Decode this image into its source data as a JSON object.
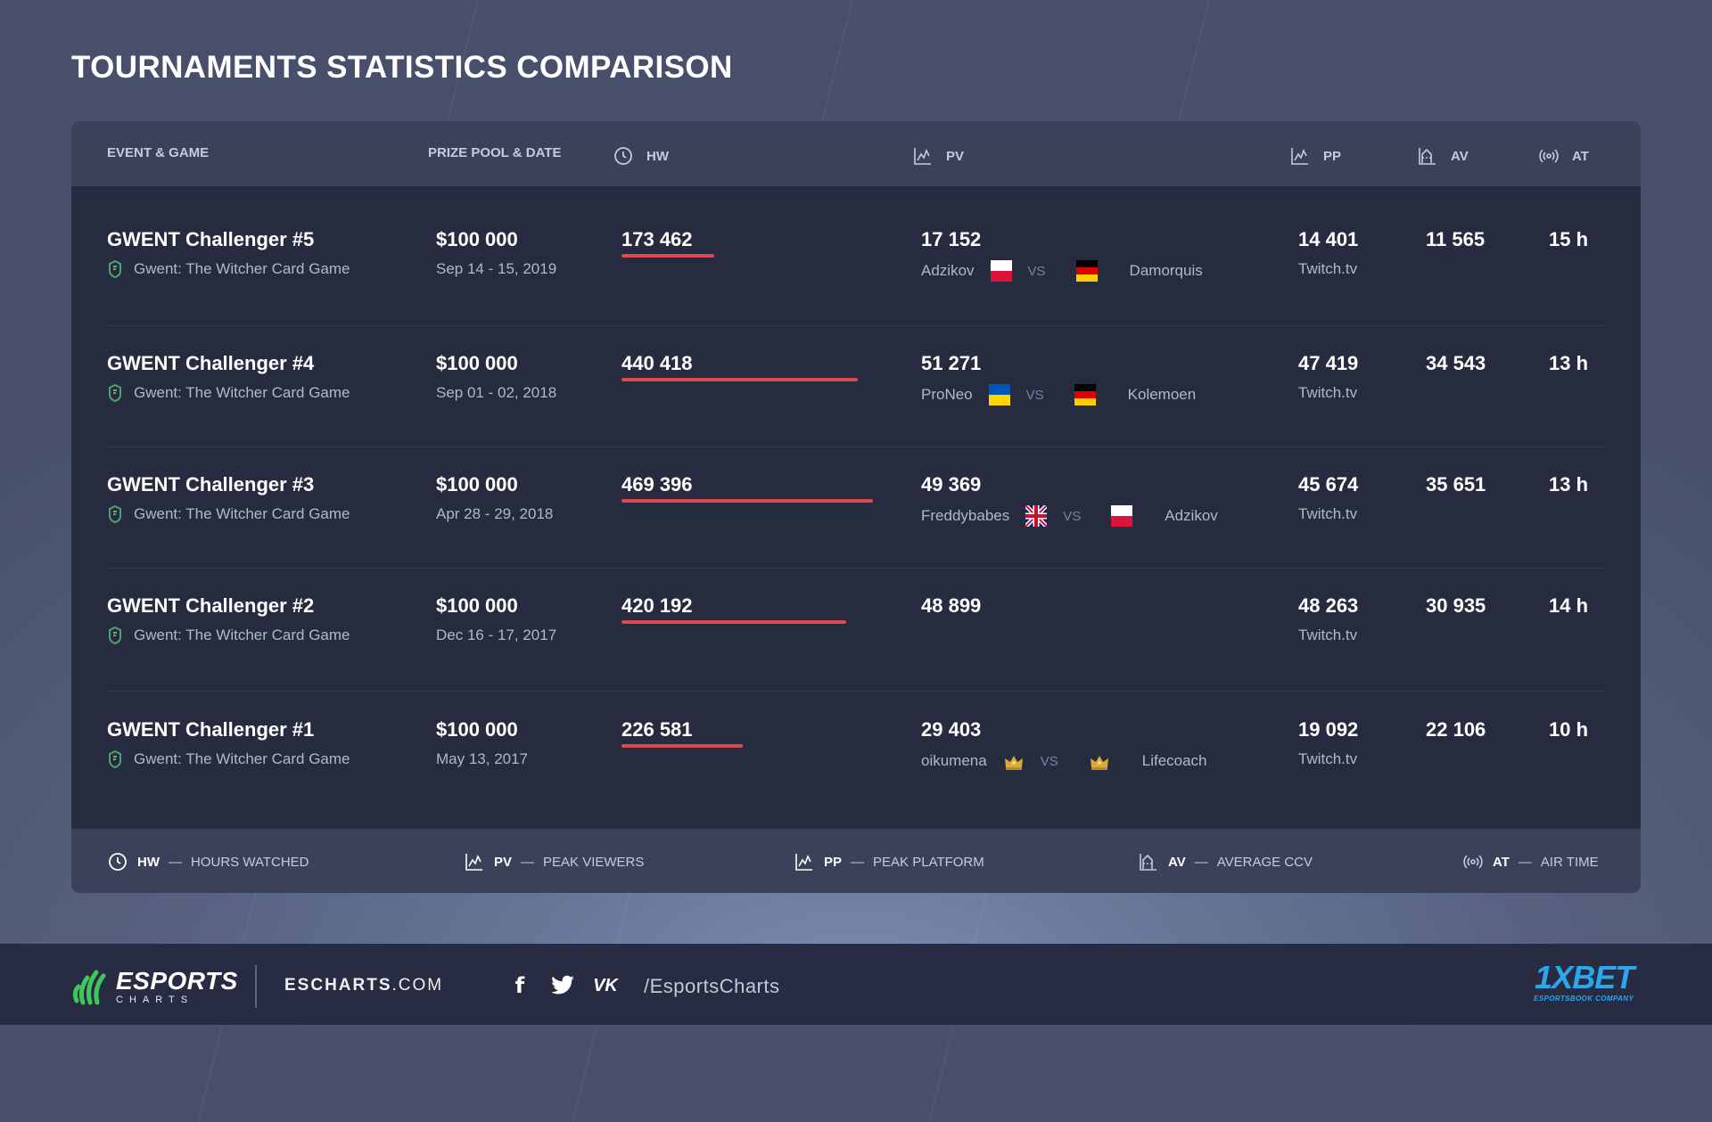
{
  "page": {
    "title": "TOURNAMENTS STATISTICS COMPARISON"
  },
  "table": {
    "headers": {
      "event": "EVENT & GAME",
      "prize": "PRIZE POOL & DATE",
      "hw": "HW",
      "pv": "PV",
      "pp": "PP",
      "av": "AV",
      "at": "AT"
    },
    "vs_label": "VS",
    "rows": [
      {
        "name": "GWENT Challenger #5",
        "game": "Gwent: The Witcher Card Game",
        "prize": "$100 000",
        "date": "Sep 14 - 15, 2019",
        "hw": "173 462",
        "hw_value": 173462,
        "pv": "17 152",
        "team1": "Adzikov",
        "team2": "Damorquis",
        "flag1": "poland",
        "flag2": "germany",
        "pp": "14 401",
        "platform": "Twitch.tv",
        "av": "11 565",
        "at": "15 h"
      },
      {
        "name": "GWENT Challenger #4",
        "game": "Gwent: The Witcher Card Game",
        "prize": "$100 000",
        "date": "Sep 01 - 02, 2018",
        "hw": "440 418",
        "hw_value": 440418,
        "pv": "51 271",
        "team1": "ProNeo",
        "team2": "Kolemoen",
        "flag1": "ukraine",
        "flag2": "germany",
        "pp": "47 419",
        "platform": "Twitch.tv",
        "av": "34 543",
        "at": "13 h"
      },
      {
        "name": "GWENT Challenger #3",
        "game": "Gwent: The Witcher Card Game",
        "prize": "$100 000",
        "date": "Apr 28 - 29, 2018",
        "hw": "469 396",
        "hw_value": 469396,
        "pv": "49 369",
        "team1": "Freddybabes",
        "team2": "Adzikov",
        "flag1": "uk",
        "flag2": "poland",
        "pp": "45 674",
        "platform": "Twitch.tv",
        "av": "35 651",
        "at": "13 h"
      },
      {
        "name": "GWENT Challenger #2",
        "game": "Gwent: The Witcher Card Game",
        "prize": "$100 000",
        "date": "Dec 16 - 17, 2017",
        "hw": "420 192",
        "hw_value": 420192,
        "pv": "48 899",
        "team1": "",
        "team2": "",
        "flag1": "",
        "flag2": "",
        "pp": "48 263",
        "platform": "Twitch.tv",
        "av": "30 935",
        "at": "14 h"
      },
      {
        "name": "GWENT Challenger #1",
        "game": "Gwent: The Witcher Card Game",
        "prize": "$100 000",
        "date": "May 13, 2017",
        "hw": "226 581",
        "hw_value": 226581,
        "pv": "29 403",
        "team1": "oikumena",
        "team2": "Lifecoach",
        "flag1": "crown",
        "flag2": "crown",
        "pp": "19 092",
        "platform": "Twitch.tv",
        "av": "22 106",
        "at": "10 h"
      }
    ]
  },
  "legend": [
    {
      "abbr": "HW",
      "label": "HOURS WATCHED",
      "icon": "clock-icon"
    },
    {
      "abbr": "PV",
      "label": "PEAK VIEWERS",
      "icon": "chart-icon"
    },
    {
      "abbr": "PP",
      "label": "PEAK PLATFORM",
      "icon": "chart-icon"
    },
    {
      "abbr": "AV",
      "label": "AVERAGE CCV",
      "icon": "average-icon"
    },
    {
      "abbr": "AT",
      "label": "AIR TIME",
      "icon": "broadcast-icon"
    }
  ],
  "legend_dash": "—",
  "footer": {
    "logo_big": "ESPORTS",
    "logo_small": "CHARTS",
    "site_bold": "ESCHARTS",
    "site_rest": ".COM",
    "social_icons": [
      "facebook-icon",
      "twitter-icon",
      "vk-icon"
    ],
    "facebook": "f",
    "vk": "VK",
    "handle": "/EsportsCharts",
    "sponsor": "1XBET",
    "sponsor_sub": "ESPORTSBOOK COMPANY"
  },
  "colors": {
    "bar": "#e0474e",
    "accent_green": "#3fc85a",
    "sponsor_blue": "#2aa7ee"
  }
}
